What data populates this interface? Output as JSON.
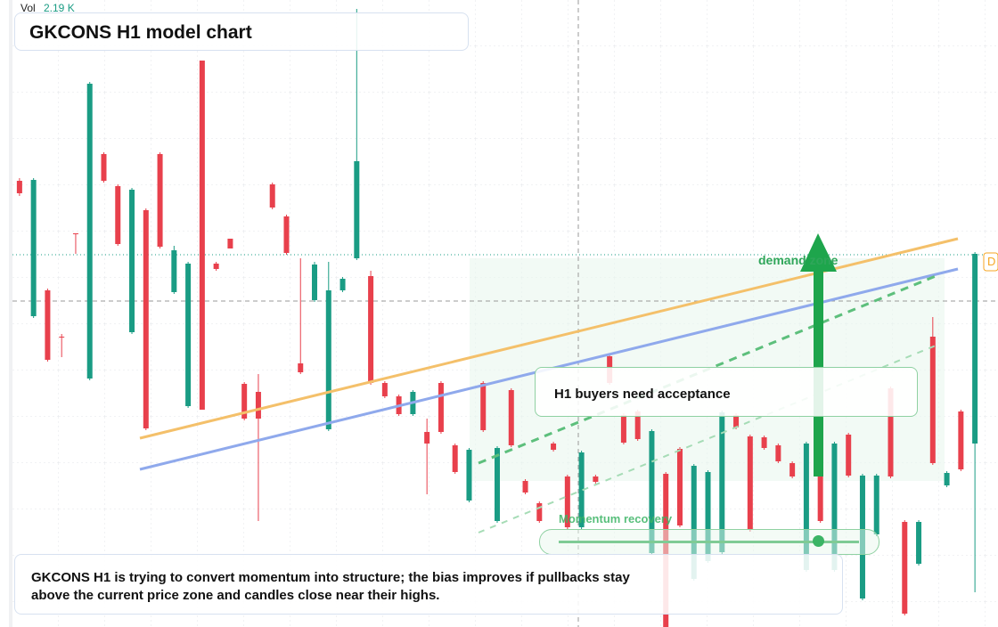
{
  "chart_data": {
    "type": "candlestick",
    "title": "GKCONS H1 model chart",
    "volume_label": "Vol",
    "volume_value": "2.19 K",
    "zone_label": "demand zone",
    "badge": "D",
    "callout": "H1 buyers need acceptance",
    "indicator_label": "Momentum recovery",
    "note": "GKCONS H1 is trying to convert momentum into structure; the bias improves if pullbacks stay above the current price zone and candles close near their highs.",
    "up_color": "#1a9c84",
    "down_color": "#e8404c",
    "ylim": [
      0,
      704
    ],
    "categories": [
      null,
      null,
      null,
      null,
      null,
      null,
      null,
      null,
      null,
      null,
      null,
      null,
      null,
      null,
      null,
      null,
      null,
      null,
      null,
      null,
      null,
      null,
      null,
      null,
      null,
      null,
      null,
      null,
      null,
      null,
      null,
      null,
      null,
      null,
      null,
      null,
      null,
      null,
      null,
      null,
      null,
      null,
      null,
      null,
      null,
      null,
      null,
      null,
      null,
      null,
      null,
      null,
      null,
      null,
      null,
      null,
      null,
      null,
      null,
      null,
      null,
      null,
      null,
      null,
      null,
      null,
      null,
      null,
      null
    ],
    "ohlc": [
      [
        501,
        504,
        484,
        487
      ],
      [
        349,
        504,
        347,
        502
      ],
      [
        378,
        380,
        298,
        300
      ],
      [
        326,
        329,
        303,
        325
      ],
      [
        442,
        442,
        419,
        441
      ],
      [
        279,
        612,
        277,
        610
      ],
      [
        531,
        533,
        499,
        501
      ],
      [
        495,
        497,
        428,
        430
      ],
      [
        331,
        493,
        329,
        491
      ],
      [
        468,
        470,
        221,
        223
      ],
      [
        531,
        533,
        425,
        427
      ],
      [
        376,
        428,
        374,
        423
      ],
      [
        248,
        410,
        246,
        408
      ],
      [
        636,
        636,
        244,
        244
      ],
      [
        408,
        410,
        400,
        402
      ],
      [
        436,
        436,
        425,
        425
      ],
      [
        273,
        275,
        232,
        234
      ],
      [
        264,
        284,
        119,
        234
      ],
      [
        497,
        499,
        469,
        471
      ],
      [
        461,
        463,
        418,
        420
      ],
      [
        296,
        414,
        284,
        286
      ],
      [
        367,
        410,
        365,
        407
      ],
      [
        222,
        410,
        220,
        378
      ],
      [
        378,
        393,
        376,
        391
      ],
      [
        414,
        694,
        412,
        523
      ],
      [
        394,
        400,
        272,
        274
      ],
      [
        274,
        276,
        257,
        259
      ],
      [
        259,
        261,
        237,
        239
      ],
      [
        239,
        266,
        237,
        264
      ],
      [
        219,
        234,
        149,
        206
      ],
      [
        274,
        276,
        217,
        219
      ],
      [
        204,
        206,
        172,
        174
      ],
      [
        142,
        201,
        140,
        199
      ],
      [
        274,
        276,
        219,
        221
      ],
      [
        119,
        203,
        117,
        201
      ],
      [
        266,
        268,
        202,
        204
      ],
      [
        164,
        166,
        149,
        151
      ],
      [
        139,
        141,
        117,
        119
      ],
      [
        206,
        208,
        197,
        199
      ],
      [
        169,
        171,
        110,
        112
      ],
      [
        112,
        198,
        110,
        196
      ],
      [
        169,
        171,
        161,
        163
      ],
      [
        304,
        306,
        272,
        274
      ],
      [
        238,
        240,
        205,
        207
      ],
      [
        242,
        244,
        209,
        211
      ],
      [
        83,
        222,
        81,
        220
      ],
      [
        172,
        174,
        0,
        0
      ],
      [
        200,
        202,
        112,
        114
      ],
      [
        54,
        183,
        52,
        181
      ],
      [
        74,
        176,
        72,
        174
      ],
      [
        84,
        243,
        82,
        241
      ],
      [
        238,
        240,
        222,
        224
      ],
      [
        214,
        216,
        107,
        109
      ],
      [
        213,
        215,
        199,
        201
      ],
      [
        204,
        206,
        184,
        186
      ],
      [
        184,
        186,
        167,
        169
      ],
      [
        64,
        208,
        62,
        206
      ],
      [
        192,
        194,
        117,
        119
      ],
      [
        64,
        208,
        62,
        206
      ],
      [
        216,
        218,
        168,
        170
      ],
      [
        32,
        172,
        30,
        170
      ],
      [
        104,
        172,
        102,
        170
      ],
      [
        268,
        270,
        167,
        169
      ],
      [
        118,
        120,
        13,
        15
      ],
      [
        71,
        120,
        69,
        118
      ],
      [
        326,
        348,
        182,
        184
      ],
      [
        159,
        175,
        157,
        173
      ],
      [
        242,
        244,
        175,
        177
      ],
      [
        206,
        421,
        39,
        419
      ]
    ]
  }
}
